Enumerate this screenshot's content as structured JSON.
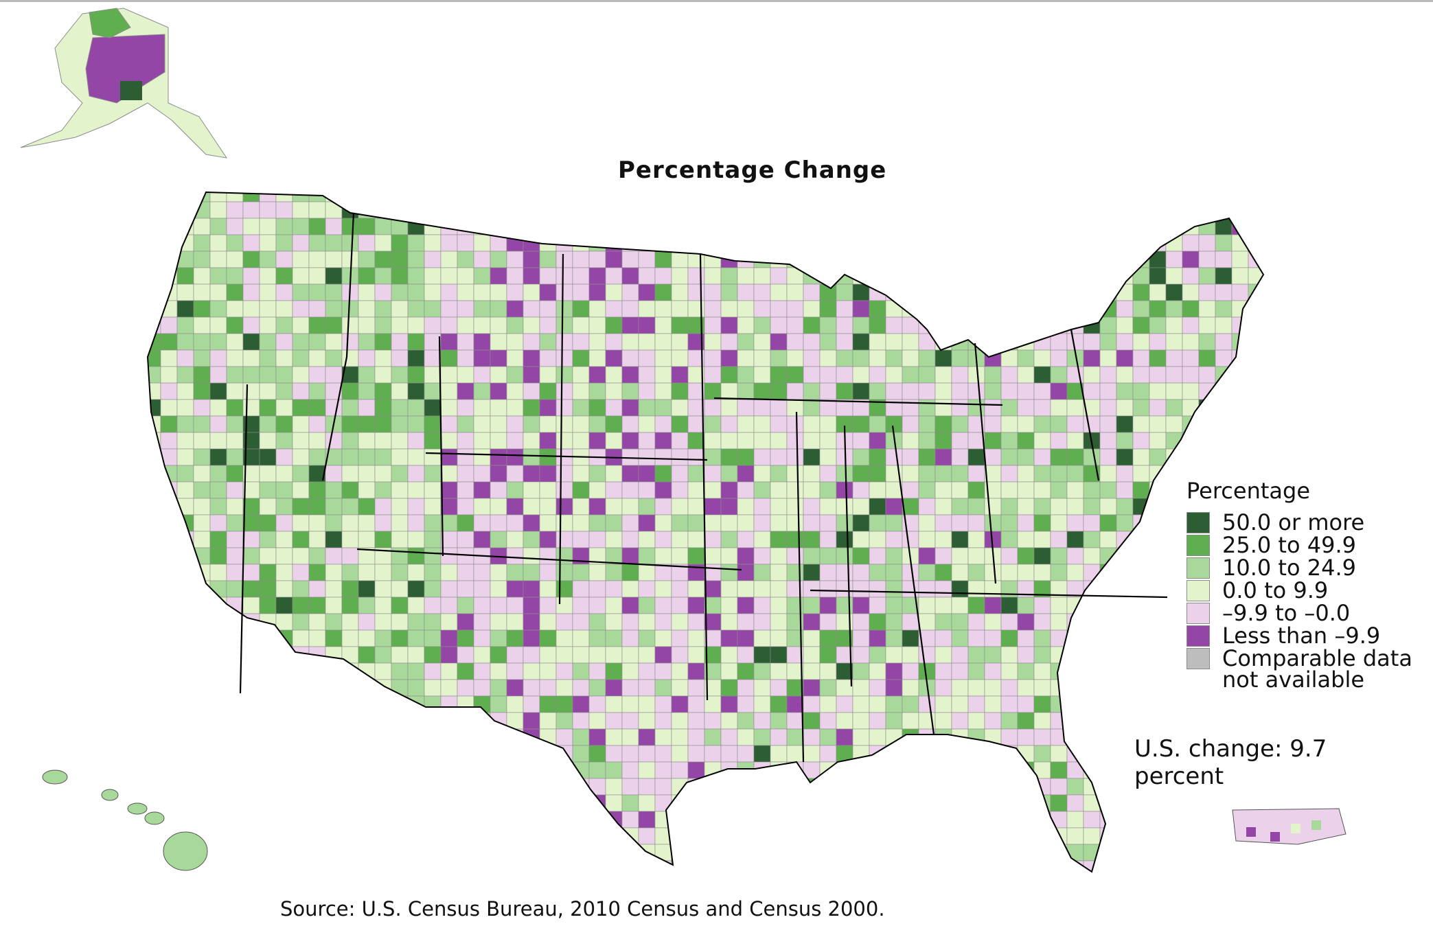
{
  "title": "Percentage Change",
  "legend": {
    "title": "Percentage",
    "items": [
      {
        "label": "50.0 or more",
        "color": "#2d5e33"
      },
      {
        "label": "25.0 to 49.9",
        "color": "#5fae4f"
      },
      {
        "label": "10.0 to 24.9",
        "color": "#a9d99a"
      },
      {
        "label": "0.0 to 9.9",
        "color": "#e3f3cc"
      },
      {
        "label": "–9.9 to –0.0",
        "color": "#ecd1ea"
      },
      {
        "label": "Less than –9.9",
        "color": "#9446a6"
      },
      {
        "label": "Comparable data\nnot available",
        "color": "#bdbdbd"
      }
    ]
  },
  "us_change": "U.S. change: 9.7 percent",
  "source": "Source: U.S. Census Bureau, 2010 Census and Census 2000.",
  "map": {
    "regions": [
      "Alaska",
      "Hawaii",
      "Puerto Rico",
      "Contiguous United States"
    ],
    "state_border_color": "#000000",
    "county_line_color": "#8c8c8c"
  }
}
